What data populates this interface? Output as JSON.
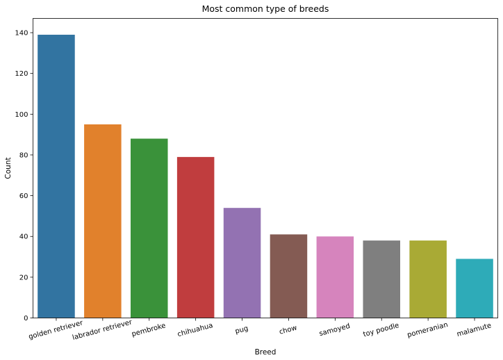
{
  "chart_data": {
    "type": "bar",
    "title": "Most common type of breeds",
    "xlabel": "Breed",
    "ylabel": "Count",
    "ylim": [
      0,
      147
    ],
    "yticks": [
      0,
      20,
      40,
      60,
      80,
      100,
      120,
      140
    ],
    "grid": false,
    "categories": [
      "golden retriever",
      "labrador retriever",
      "pembroke",
      "chihuahua",
      "pug",
      "chow",
      "samoyed",
      "toy poodle",
      "pomeranian",
      "malamute"
    ],
    "values": [
      139,
      95,
      88,
      79,
      54,
      41,
      40,
      38,
      38,
      29
    ],
    "colors": [
      "#3274a1",
      "#e1812c",
      "#3a923a",
      "#c03d3e",
      "#9372b2",
      "#845b53",
      "#d684bd",
      "#7f7f7f",
      "#a9aa35",
      "#2eabb8"
    ]
  }
}
